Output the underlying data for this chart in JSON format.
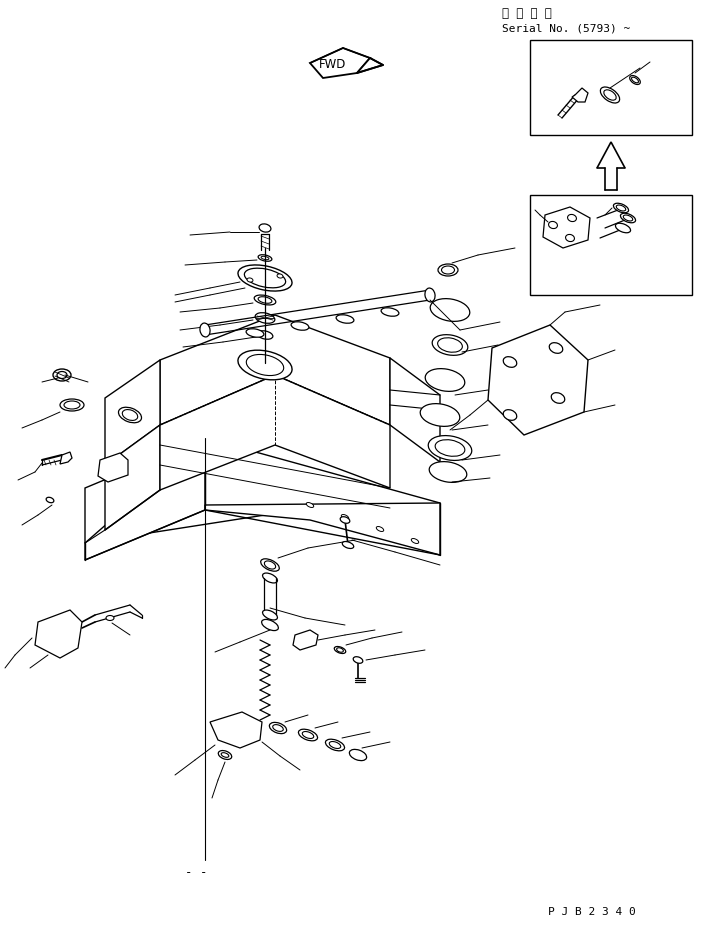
{
  "bg_color": "#ffffff",
  "line_color": "#000000",
  "title_line1": "適 用 号 機",
  "title_line2": "Serial No. (5793) ~",
  "bottom_code": "P J B 2 3 4 0",
  "fwd_label": "FWD",
  "figsize": [
    7.04,
    9.3
  ],
  "dpi": 100
}
